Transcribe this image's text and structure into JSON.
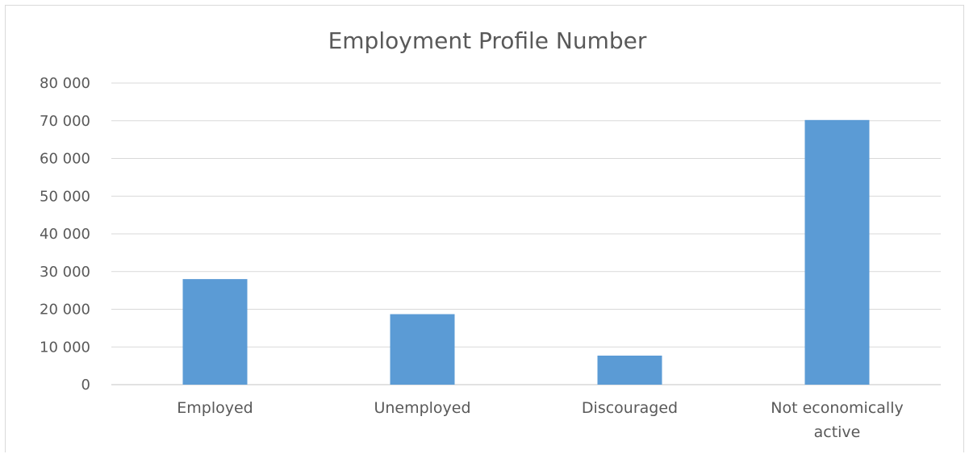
{
  "chart_data": {
    "type": "bar",
    "title": "Employment Profile Number",
    "categories": [
      "Employed",
      "Unemployed",
      "Discouraged",
      "Not economically active"
    ],
    "category_lines": [
      [
        "Employed"
      ],
      [
        "Unemployed"
      ],
      [
        "Discouraged"
      ],
      [
        "Not economically",
        "active"
      ]
    ],
    "values": [
      28000,
      18700,
      7700,
      70200
    ],
    "ylim": [
      0,
      80000
    ],
    "yticks": [
      0,
      10000,
      20000,
      30000,
      40000,
      50000,
      60000,
      70000,
      80000
    ],
    "ytick_labels": [
      "0",
      "10 000",
      "20 000",
      "30 000",
      "40 000",
      "50 000",
      "60 000",
      "70 000",
      "80 000"
    ],
    "grid": true,
    "legend": false,
    "bar_color": "#5b9bd5",
    "grid_color": "#d9d9d9",
    "text_color": "#595959"
  }
}
